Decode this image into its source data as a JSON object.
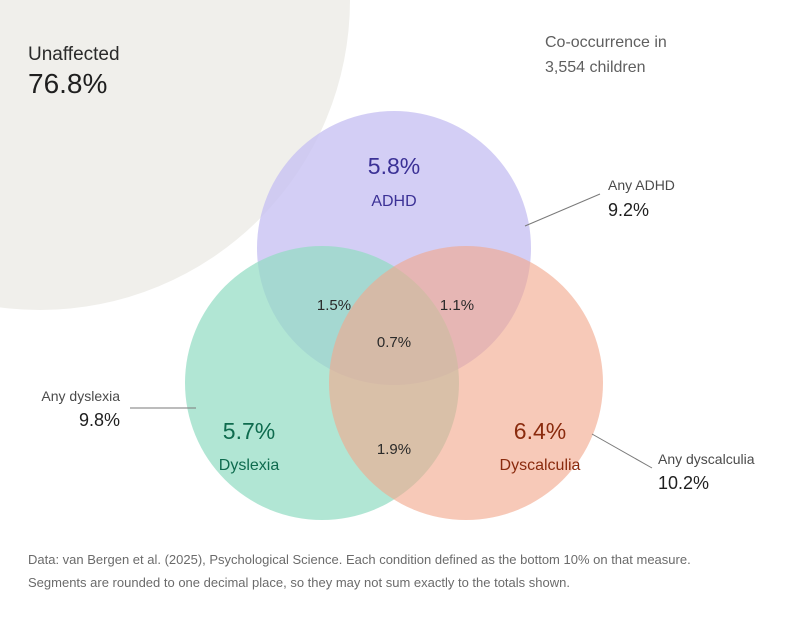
{
  "chart_data": {
    "type": "venn",
    "annotation": {
      "title": "Co-occurrence in",
      "subtitle": "3,554 children"
    },
    "unaffected": {
      "label": "Unaffected",
      "value": "76.8%",
      "color": "#f0efeb"
    },
    "sets": [
      {
        "key": "adhd",
        "name": "ADHD",
        "only": "5.8%",
        "total_label": "Any ADHD",
        "total": "9.2%",
        "fill": "#c6c0f2",
        "text_color": "#3b3196"
      },
      {
        "key": "dyslexia",
        "name": "Dyslexia",
        "only": "5.7%",
        "total_label": "Any dyslexia",
        "total": "9.8%",
        "fill": "#93dcc3",
        "text_color": "#0e6b4e"
      },
      {
        "key": "dyscalculia",
        "name": "Dyscalculia",
        "only": "6.4%",
        "total_label": "Any dyscalculia",
        "total": "10.2%",
        "fill": "#f2a88d",
        "text_color": "#8a2b0e"
      }
    ],
    "overlaps": {
      "adhd_dyslexia": "1.5%",
      "adhd_dyscalculia": "1.1%",
      "dyslexia_dyscalculia": "1.9%",
      "all_three": "0.7%"
    }
  },
  "footnote": {
    "line1": "Data: van Bergen et al. (2025), Psychological Science. Each condition defined as the bottom 10% on that measure.",
    "line2": "Segments are rounded to one decimal place, so they may not sum exactly to the totals shown."
  }
}
